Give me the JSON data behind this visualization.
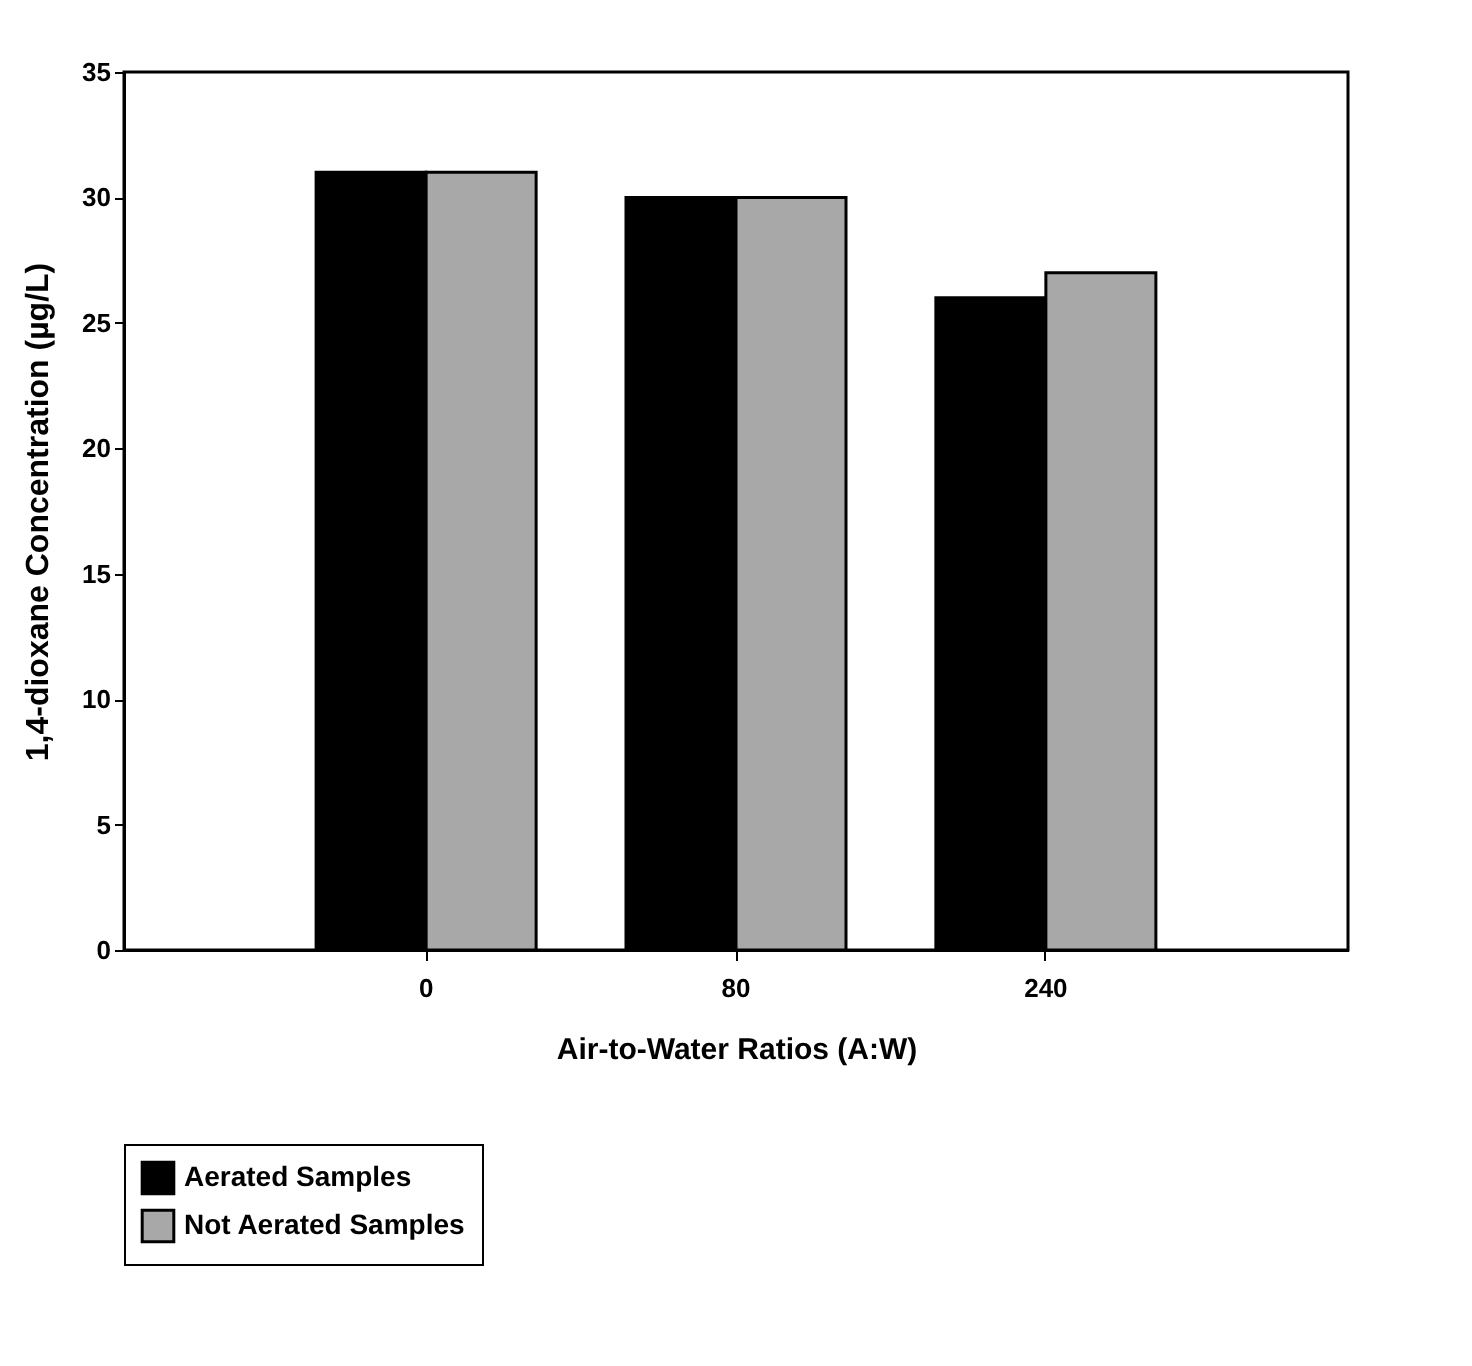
{
  "chart_data": {
    "type": "bar",
    "xlabel": "Air-to-Water Ratios (A:W)",
    "ylabel": "1,4-dioxane Concentration (µg/L)",
    "categories": [
      "0",
      "80",
      "240"
    ],
    "series": [
      {
        "name": "Aerated Samples",
        "color": "#000000",
        "values": [
          31,
          30,
          26
        ]
      },
      {
        "name": "Not Aerated Samples",
        "color": "#a8a8a8",
        "values": [
          31,
          30,
          27
        ]
      }
    ],
    "ylim": [
      0,
      35
    ],
    "yticks": [
      0,
      5,
      10,
      15,
      20,
      25,
      30,
      35
    ],
    "grid": false,
    "legend": "bottom"
  }
}
